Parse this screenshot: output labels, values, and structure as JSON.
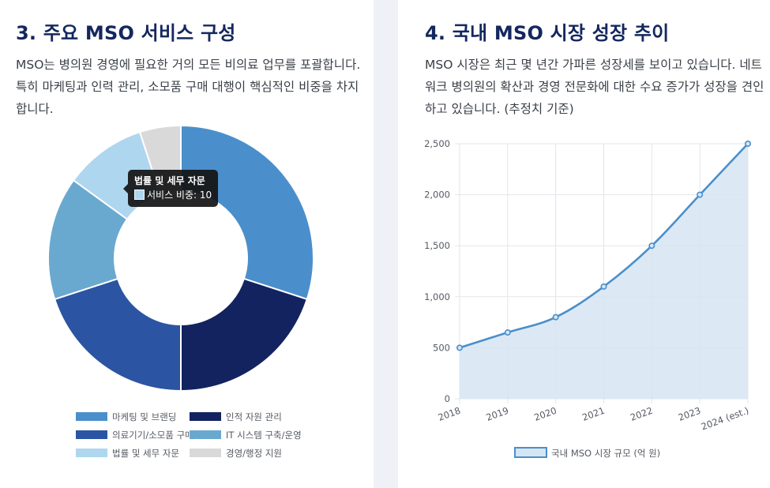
{
  "left": {
    "title": "3. 주요 MSO 서비스 구성",
    "description": "MSO는 병의원 경영에 필요한 거의 모든 비의료 업무를 포괄합니다. 특히 마케팅과 인력 관리, 소모품 구매 대행이 핵심적인 비중을 차지합니다.",
    "tooltip": {
      "title": "법률 및 세무 자문",
      "label": "서비스 비중: 10"
    }
  },
  "right": {
    "title": "4. 국내 MSO 시장 성장 추이",
    "description": "MSO 시장은 최근 몇 년간 가파른 성장세를 보이고 있습니다. 네트워크 병의원의 확산과 경영 전문화에 대한 수요 증가가 성장을 견인하고 있습니다. (추정치 기준)"
  },
  "chart_data": [
    {
      "type": "pie",
      "variant": "doughnut",
      "series_name": "서비스 비중",
      "categories": [
        "마케팅 및 브랜딩",
        "인적 자원 관리",
        "의료기기/소모품 구매",
        "IT 시스템 구축/운영",
        "법률 및 세무 자문",
        "경영/행정 지원"
      ],
      "values": [
        30,
        20,
        20,
        15,
        10,
        5
      ],
      "colors": [
        "#4a8fcb",
        "#13235f",
        "#2b55a2",
        "#6aa9cf",
        "#aed6ef",
        "#d9d9d9"
      ],
      "legend_position": "bottom"
    },
    {
      "type": "area",
      "x": [
        "2018",
        "2019",
        "2020",
        "2021",
        "2022",
        "2023",
        "2024 (est.)"
      ],
      "series": [
        {
          "name": "국내 MSO 시장 규모 (억 원)",
          "values": [
            500,
            650,
            800,
            1100,
            1500,
            2000,
            2500
          ]
        }
      ],
      "yticks": [
        "0",
        "500",
        "1,000",
        "1,500",
        "2,000",
        "2,500"
      ],
      "ytick_values": [
        0,
        500,
        1000,
        1500,
        2000,
        2500
      ],
      "ylim": [
        0,
        2500
      ],
      "line_color": "#4a8fcb",
      "fill_color": "#d6e5f3",
      "grid": true,
      "legend_position": "bottom"
    }
  ]
}
